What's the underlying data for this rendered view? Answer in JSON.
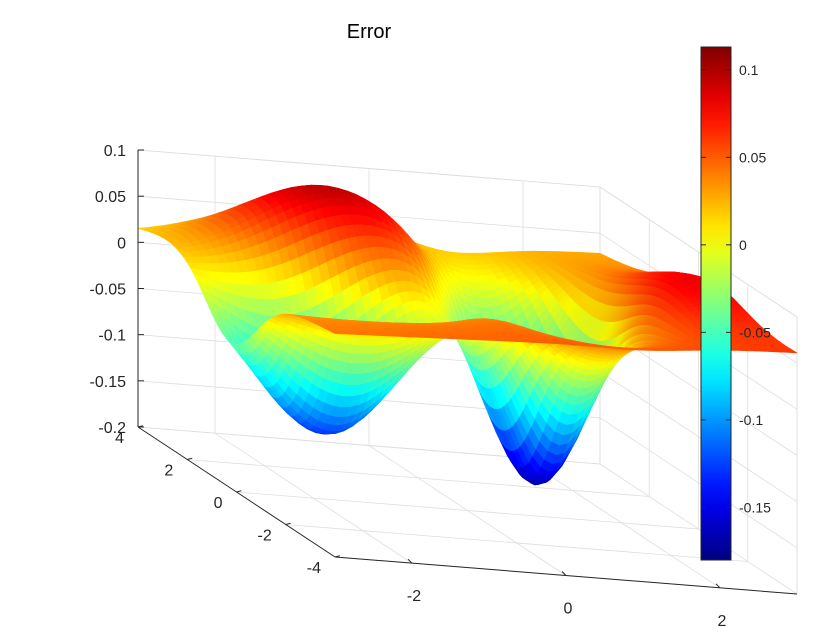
{
  "chart_data": {
    "type": "surface",
    "title": "Error",
    "xlabel": "",
    "ylabel": "",
    "zlabel": "",
    "xlim": [
      -3,
      3
    ],
    "ylim": [
      -4,
      4
    ],
    "zlim": [
      -0.2,
      0.1
    ],
    "x_ticks": [
      -2,
      0,
      2
    ],
    "x_tick_labels": [
      "-2",
      "0",
      "2"
    ],
    "y_ticks": [
      -4,
      -2,
      0,
      2,
      4
    ],
    "y_tick_labels": [
      "-4",
      "-2",
      "0",
      "2",
      "4"
    ],
    "z_ticks": [
      -0.2,
      -0.15,
      -0.1,
      -0.05,
      0,
      0.05,
      0.1
    ],
    "z_tick_labels": [
      "-0.2",
      "-0.15",
      "-0.1",
      "-0.05",
      "0",
      "0.05",
      "0.1"
    ],
    "grid": true,
    "colormap": "jet",
    "colorbar": {
      "location": "right",
      "range": [
        -0.18,
        0.113
      ],
      "ticks": [
        -0.15,
        -0.1,
        -0.05,
        0,
        0.05,
        0.1
      ],
      "tick_labels": [
        "-0.15",
        "-0.1",
        "-0.05",
        "0",
        "0.05",
        "0.1"
      ]
    },
    "surface_features": [
      {
        "label": "peak",
        "x": -1.0,
        "y": 2.7,
        "z": 0.113
      },
      {
        "label": "peak",
        "x": 2.6,
        "y": -0.4,
        "z": 0.07
      },
      {
        "label": "ridge",
        "x": 0.9,
        "y": -1.2,
        "z": 0.055
      },
      {
        "label": "trough",
        "x": 1.0,
        "y": 0.3,
        "z": -0.18
      },
      {
        "label": "trough",
        "x": -1.8,
        "y": 0.2,
        "z": -0.13
      }
    ],
    "edge_values": {
      "corner_left": 0.03,
      "corner_right": 0.035,
      "corner_front": -0.03,
      "corner_back": 0.05
    }
  }
}
